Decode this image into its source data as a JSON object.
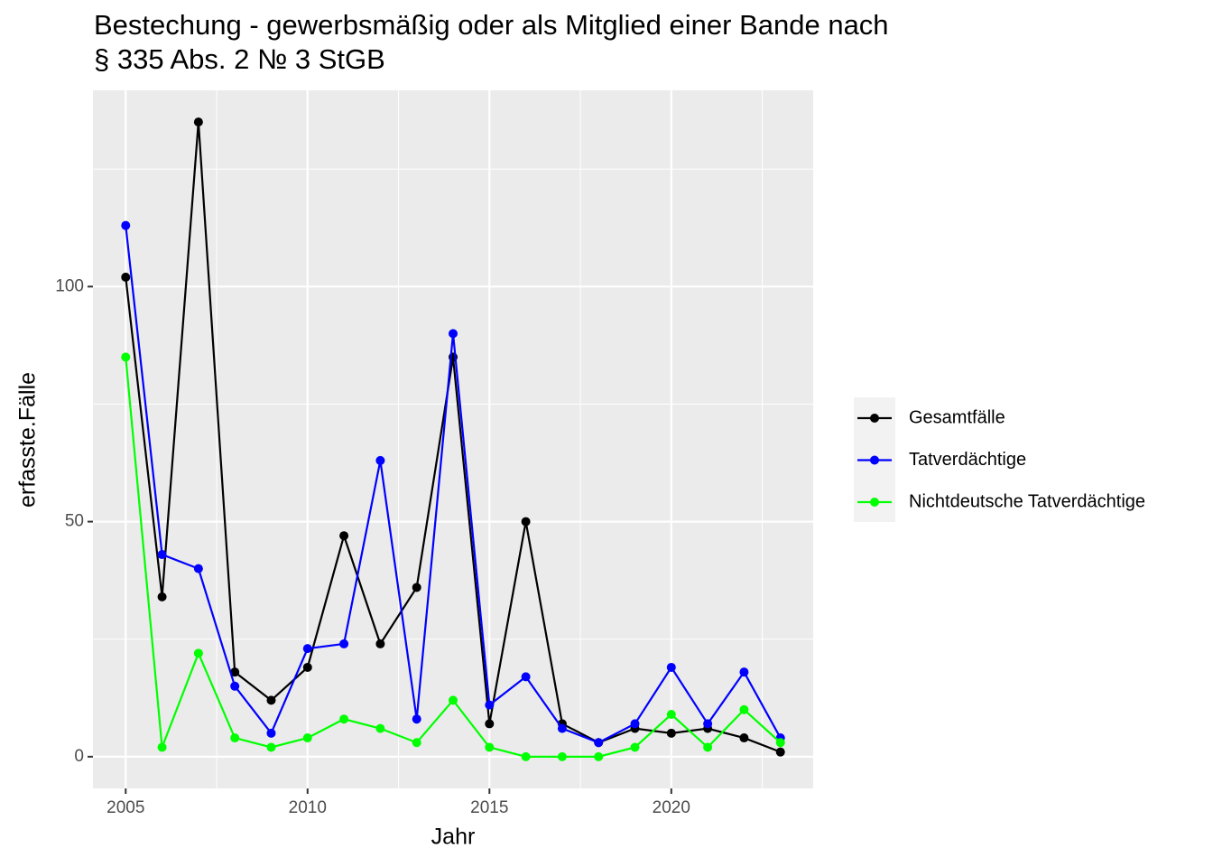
{
  "chart_data": {
    "type": "line",
    "title": [
      "Bestechung - gewerbsmäßig oder als Mitglied einer Bande nach",
      "§ 335 Abs. 2 № 3 StGB"
    ],
    "x_label": "Jahr",
    "y_label": "erfasste.Fälle",
    "x": [
      2005,
      2006,
      2007,
      2008,
      2009,
      2010,
      2011,
      2012,
      2013,
      2014,
      2015,
      2016,
      2017,
      2018,
      2019,
      2020,
      2021,
      2022,
      2023
    ],
    "series": [
      {
        "name": "Gesamtfälle",
        "color": "#000000",
        "values": [
          102,
          34,
          135,
          18,
          12,
          19,
          47,
          24,
          36,
          85,
          7,
          50,
          7,
          3,
          6,
          5,
          6,
          4,
          1
        ]
      },
      {
        "name": "Tatverdächtige",
        "color": "#0000ff",
        "values": [
          113,
          43,
          40,
          15,
          5,
          23,
          24,
          63,
          8,
          90,
          11,
          17,
          6,
          3,
          7,
          19,
          7,
          18,
          4
        ]
      },
      {
        "name": "Nichtdeutsche Tatverdächtige",
        "color": "#00ff00",
        "values": [
          85,
          2,
          22,
          4,
          2,
          4,
          8,
          6,
          3,
          12,
          2,
          0,
          0,
          0,
          2,
          9,
          2,
          10,
          3
        ]
      }
    ],
    "xlim": [
      2004.1,
      2023.9
    ],
    "xticks": [
      2005,
      2010,
      2015,
      2020
    ],
    "ylim": [
      -6.75,
      141.75
    ],
    "yticks": [
      0,
      50,
      100
    ],
    "grid": true,
    "legend": "right"
  }
}
